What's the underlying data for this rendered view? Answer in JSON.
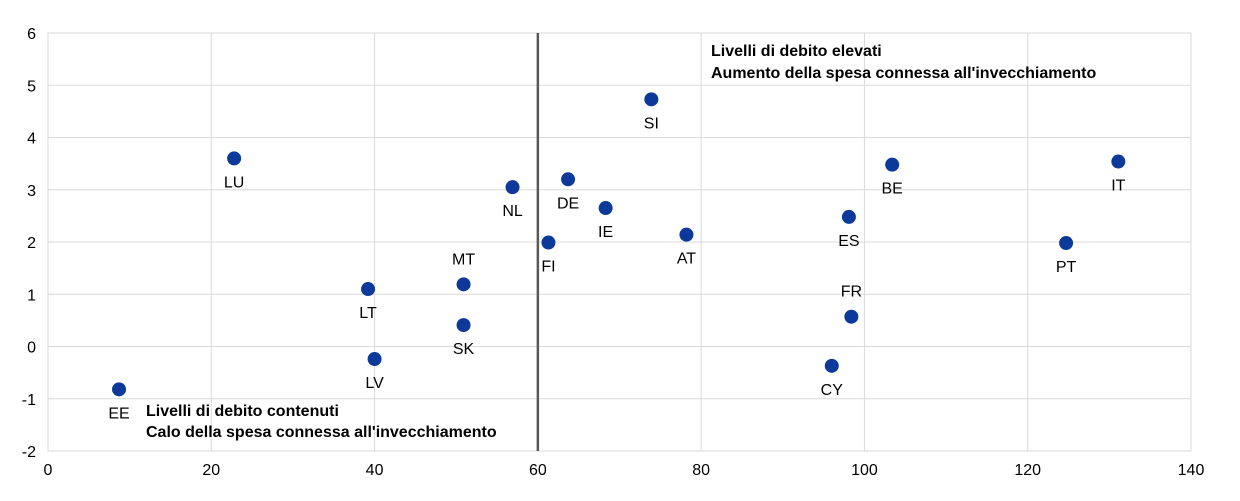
{
  "chart_data": {
    "type": "scatter",
    "title": "",
    "xlabel": "",
    "ylabel": "",
    "xlim": [
      0,
      140
    ],
    "ylim": [
      -2,
      6
    ],
    "x_ticks": [
      0,
      20,
      40,
      60,
      80,
      100,
      120,
      140
    ],
    "y_ticks": [
      -2,
      -1,
      0,
      1,
      2,
      3,
      4,
      5,
      6
    ],
    "grid": true,
    "marker_color": "#0D3A9A",
    "vline": {
      "x": 60,
      "color": "#595959"
    },
    "points": [
      {
        "label": "EE",
        "x": 8.7,
        "y": -0.82,
        "label_pos": "below"
      },
      {
        "label": "LU",
        "x": 22.8,
        "y": 3.6,
        "label_pos": "below"
      },
      {
        "label": "LT",
        "x": 39.2,
        "y": 1.1,
        "label_pos": "below"
      },
      {
        "label": "LV",
        "x": 40.0,
        "y": -0.24,
        "label_pos": "below"
      },
      {
        "label": "MT",
        "x": 50.9,
        "y": 1.19,
        "label_pos": "above"
      },
      {
        "label": "SK",
        "x": 50.9,
        "y": 0.41,
        "label_pos": "below"
      },
      {
        "label": "NL",
        "x": 56.9,
        "y": 3.05,
        "label_pos": "below"
      },
      {
        "label": "FI",
        "x": 61.3,
        "y": 1.99,
        "label_pos": "below"
      },
      {
        "label": "DE",
        "x": 63.7,
        "y": 3.2,
        "label_pos": "below"
      },
      {
        "label": "IE",
        "x": 68.3,
        "y": 2.65,
        "label_pos": "below"
      },
      {
        "label": "SI",
        "x": 73.9,
        "y": 4.73,
        "label_pos": "below"
      },
      {
        "label": "AT",
        "x": 78.2,
        "y": 2.14,
        "label_pos": "below"
      },
      {
        "label": "CY",
        "x": 96.0,
        "y": -0.37,
        "label_pos": "below"
      },
      {
        "label": "ES",
        "x": 98.1,
        "y": 2.48,
        "label_pos": "below"
      },
      {
        "label": "FR",
        "x": 98.4,
        "y": 0.57,
        "label_pos": "above"
      },
      {
        "label": "BE",
        "x": 103.4,
        "y": 3.48,
        "label_pos": "below"
      },
      {
        "label": "PT",
        "x": 124.7,
        "y": 1.98,
        "label_pos": "below"
      },
      {
        "label": "IT",
        "x": 131.1,
        "y": 3.54,
        "label_pos": "below"
      }
    ],
    "annotations": {
      "high": {
        "line1": "Livelli di debito elevati",
        "line2": "Aumento della spesa connessa all'invecchiamento"
      },
      "low": {
        "line1": "Livelli di debito contenuti",
        "line2": "Calo della spesa connessa all'invecchiamento"
      }
    }
  }
}
